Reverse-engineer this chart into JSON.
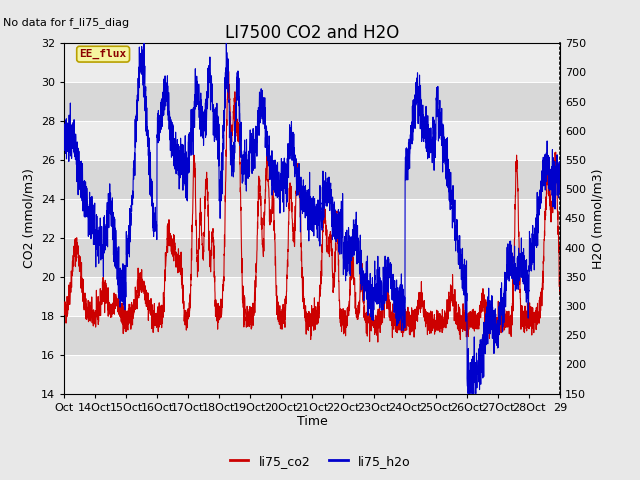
{
  "title": "LI7500 CO2 and H2O",
  "xlabel": "Time",
  "ylabel_left": "CO2 (mmol/m3)",
  "ylabel_right": "H2O (mmol/m3)",
  "no_data_text": "No data for f_li75_diag",
  "ee_flux_text": "EE_flux",
  "ylim_left": [
    14,
    32
  ],
  "ylim_right": [
    150,
    750
  ],
  "yticks_left": [
    14,
    16,
    18,
    20,
    22,
    24,
    26,
    28,
    30,
    32
  ],
  "yticks_right": [
    150,
    200,
    250,
    300,
    350,
    400,
    450,
    500,
    550,
    600,
    650,
    700,
    750
  ],
  "xtick_labels": [
    "Oct",
    "14Oct",
    "15Oct",
    "16Oct",
    "17Oct",
    "18Oct",
    "19Oct",
    "20Oct",
    "21Oct",
    "22Oct",
    "23Oct",
    "24Oct",
    "25Oct",
    "26Oct",
    "27Oct",
    "28Oct",
    "29"
  ],
  "legend_labels": [
    "li75_co2",
    "li75_h2o"
  ],
  "co2_color": "#cc0000",
  "h2o_color": "#0000cc",
  "bg_color": "#e8e8e8",
  "band_dark": "#d8d8d8",
  "band_light": "#ececec",
  "title_fontsize": 12,
  "label_fontsize": 9,
  "tick_fontsize": 8,
  "annot_fontsize": 8
}
